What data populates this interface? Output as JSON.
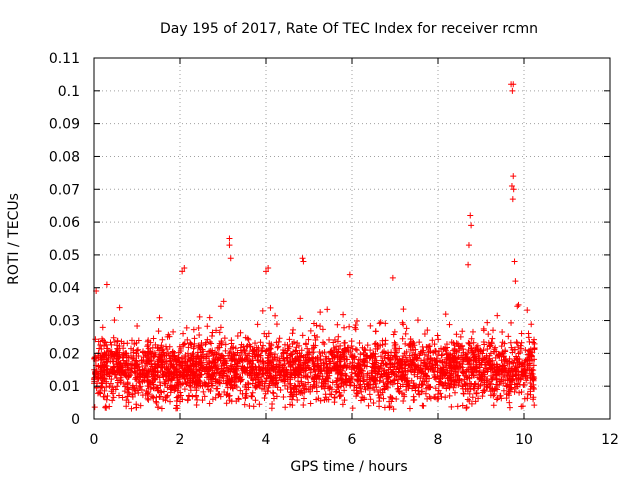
{
  "chart_data": {
    "type": "scatter",
    "title": "Day 195 of 2017, Rate Of TEC Index for receiver rcmn",
    "xlabel": "GPS time / hours",
    "ylabel": "ROTI / TECUs",
    "xlim": [
      0,
      12
    ],
    "ylim": [
      0,
      0.11
    ],
    "xticks": [
      0,
      2,
      4,
      6,
      8,
      10,
      12
    ],
    "xtick_labels": [
      "0",
      "2",
      "4",
      "6",
      "8",
      "10",
      "12"
    ],
    "yticks": [
      0,
      0.01,
      0.02,
      0.03,
      0.04,
      0.05,
      0.06,
      0.07,
      0.08,
      0.09,
      0.1,
      0.11
    ],
    "ytick_labels": [
      "0",
      "0.01",
      "0.02",
      "0.03",
      "0.04",
      "0.05",
      "0.06",
      "0.07",
      "0.08",
      "0.09",
      "0.1",
      "0.11"
    ],
    "grid": true,
    "marker": "+",
    "marker_color": "#ff0000",
    "series": [
      {
        "name": "ROTI",
        "x_range": [
          0.0,
          10.25
        ],
        "typical_range": [
          0.005,
          0.025
        ],
        "notable_points": [
          {
            "x": 3.15,
            "y": 0.055
          },
          {
            "x": 3.15,
            "y": 0.053
          },
          {
            "x": 3.18,
            "y": 0.049
          },
          {
            "x": 4.85,
            "y": 0.049
          },
          {
            "x": 4.87,
            "y": 0.048
          },
          {
            "x": 8.75,
            "y": 0.062
          },
          {
            "x": 8.77,
            "y": 0.059
          },
          {
            "x": 8.72,
            "y": 0.053
          },
          {
            "x": 9.7,
            "y": 0.102
          },
          {
            "x": 9.73,
            "y": 0.1
          },
          {
            "x": 9.75,
            "y": 0.102
          },
          {
            "x": 9.75,
            "y": 0.074
          },
          {
            "x": 9.72,
            "y": 0.071
          },
          {
            "x": 9.76,
            "y": 0.07
          },
          {
            "x": 9.74,
            "y": 0.067
          },
          {
            "x": 9.78,
            "y": 0.048
          },
          {
            "x": 9.8,
            "y": 0.042
          },
          {
            "x": 2.05,
            "y": 0.045
          },
          {
            "x": 2.1,
            "y": 0.046
          },
          {
            "x": 4.0,
            "y": 0.045
          },
          {
            "x": 4.05,
            "y": 0.046
          },
          {
            "x": 5.95,
            "y": 0.044
          },
          {
            "x": 6.95,
            "y": 0.043
          },
          {
            "x": 0.3,
            "y": 0.041
          },
          {
            "x": 0.05,
            "y": 0.039
          },
          {
            "x": 8.7,
            "y": 0.047
          }
        ]
      }
    ]
  }
}
